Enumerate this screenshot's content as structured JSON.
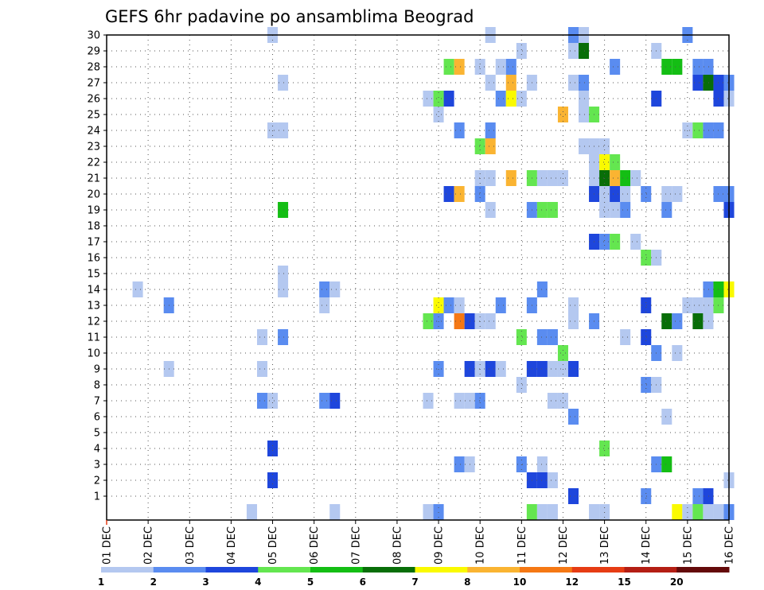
{
  "chart_data": {
    "type": "heatmap",
    "title": "GEFS 6hr padavine po ansamblima Beograd",
    "x_tick_labels": [
      "01 DEC",
      "02 DEC",
      "03 DEC",
      "04 DEC",
      "05 DEC",
      "06 DEC",
      "07 DEC",
      "08 DEC",
      "09 DEC",
      "10 DEC",
      "11 DEC",
      "12 DEC",
      "13 DEC",
      "14 DEC",
      "15 DEC",
      "16 DEC"
    ],
    "y_tick_labels": [
      "1",
      "2",
      "3",
      "4",
      "5",
      "6",
      "7",
      "8",
      "9",
      "10",
      "11",
      "12",
      "13",
      "14",
      "15",
      "16",
      "17",
      "18",
      "19",
      "20",
      "21",
      "22",
      "23",
      "24",
      "25",
      "26",
      "27",
      "28",
      "29",
      "30"
    ],
    "xlim_days": [
      1,
      16
    ],
    "ylim_members": [
      0,
      30
    ],
    "grid": true,
    "legend_placement": "bottom",
    "legend": {
      "labels": [
        "1",
        "2",
        "3",
        "4",
        "5",
        "6",
        "7",
        "8",
        "10",
        "12",
        "15",
        "20"
      ],
      "colors": [
        "#b4c8f0",
        "#5a8cf0",
        "#1e46dc",
        "#64e650",
        "#14be14",
        "#086e08",
        "#fafa00",
        "#fab432",
        "#f57814",
        "#e63c14",
        "#b41e14",
        "#640a0a"
      ]
    },
    "cells": [
      {
        "day": 5.0,
        "member": 30,
        "level": 1
      },
      {
        "day": 10.25,
        "member": 30,
        "level": 1
      },
      {
        "day": 12.25,
        "member": 30,
        "level": 2
      },
      {
        "day": 12.5,
        "member": 30,
        "level": 1
      },
      {
        "day": 15.0,
        "member": 30,
        "level": 2
      },
      {
        "day": 11.0,
        "member": 29,
        "level": 1
      },
      {
        "day": 12.25,
        "member": 29,
        "level": 1
      },
      {
        "day": 12.5,
        "member": 29,
        "level": 6
      },
      {
        "day": 14.25,
        "member": 29,
        "level": 1
      },
      {
        "day": 9.25,
        "member": 28,
        "level": 4
      },
      {
        "day": 9.5,
        "member": 28,
        "level": 8
      },
      {
        "day": 10.0,
        "member": 28,
        "level": 1
      },
      {
        "day": 10.5,
        "member": 28,
        "level": 1
      },
      {
        "day": 10.75,
        "member": 28,
        "level": 2
      },
      {
        "day": 13.25,
        "member": 28,
        "level": 2
      },
      {
        "day": 14.5,
        "member": 28,
        "level": 5
      },
      {
        "day": 14.75,
        "member": 28,
        "level": 5
      },
      {
        "day": 15.25,
        "member": 28,
        "level": 2
      },
      {
        "day": 15.5,
        "member": 28,
        "level": 2
      },
      {
        "day": 5.25,
        "member": 27,
        "level": 1
      },
      {
        "day": 10.25,
        "member": 27,
        "level": 1
      },
      {
        "day": 10.75,
        "member": 27,
        "level": 8
      },
      {
        "day": 11.25,
        "member": 27,
        "level": 1
      },
      {
        "day": 12.25,
        "member": 27,
        "level": 1
      },
      {
        "day": 12.5,
        "member": 27,
        "level": 2
      },
      {
        "day": 15.25,
        "member": 27,
        "level": 3
      },
      {
        "day": 15.5,
        "member": 27,
        "level": 6
      },
      {
        "day": 15.75,
        "member": 27,
        "level": 3
      },
      {
        "day": 16.0,
        "member": 27,
        "level": 2
      },
      {
        "day": 8.75,
        "member": 26,
        "level": 1
      },
      {
        "day": 9.0,
        "member": 26,
        "level": 4
      },
      {
        "day": 9.25,
        "member": 26,
        "level": 3
      },
      {
        "day": 10.5,
        "member": 26,
        "level": 2
      },
      {
        "day": 10.75,
        "member": 26,
        "level": 7
      },
      {
        "day": 11.0,
        "member": 26,
        "level": 1
      },
      {
        "day": 12.5,
        "member": 26,
        "level": 1
      },
      {
        "day": 14.25,
        "member": 26,
        "level": 3
      },
      {
        "day": 15.75,
        "member": 26,
        "level": 3
      },
      {
        "day": 16.0,
        "member": 26,
        "level": 1
      },
      {
        "day": 9.0,
        "member": 25,
        "level": 1
      },
      {
        "day": 12.0,
        "member": 25,
        "level": 8
      },
      {
        "day": 12.5,
        "member": 25,
        "level": 1
      },
      {
        "day": 12.75,
        "member": 25,
        "level": 4
      },
      {
        "day": 5.0,
        "member": 24,
        "level": 1
      },
      {
        "day": 5.25,
        "member": 24,
        "level": 1
      },
      {
        "day": 9.5,
        "member": 24,
        "level": 2
      },
      {
        "day": 10.25,
        "member": 24,
        "level": 2
      },
      {
        "day": 15.0,
        "member": 24,
        "level": 1
      },
      {
        "day": 15.25,
        "member": 24,
        "level": 4
      },
      {
        "day": 15.5,
        "member": 24,
        "level": 2
      },
      {
        "day": 15.75,
        "member": 24,
        "level": 2
      },
      {
        "day": 10.0,
        "member": 23,
        "level": 4
      },
      {
        "day": 10.25,
        "member": 23,
        "level": 8
      },
      {
        "day": 12.5,
        "member": 23,
        "level": 1
      },
      {
        "day": 12.75,
        "member": 23,
        "level": 1
      },
      {
        "day": 13.0,
        "member": 23,
        "level": 1
      },
      {
        "day": 12.75,
        "member": 22,
        "level": 1
      },
      {
        "day": 13.0,
        "member": 22,
        "level": 7
      },
      {
        "day": 13.25,
        "member": 22,
        "level": 4
      },
      {
        "day": 10.0,
        "member": 21,
        "level": 1
      },
      {
        "day": 10.25,
        "member": 21,
        "level": 1
      },
      {
        "day": 10.75,
        "member": 21,
        "level": 8
      },
      {
        "day": 11.25,
        "member": 21,
        "level": 4
      },
      {
        "day": 11.5,
        "member": 21,
        "level": 1
      },
      {
        "day": 11.75,
        "member": 21,
        "level": 1
      },
      {
        "day": 12.0,
        "member": 21,
        "level": 1
      },
      {
        "day": 12.75,
        "member": 21,
        "level": 1
      },
      {
        "day": 13.0,
        "member": 21,
        "level": 6
      },
      {
        "day": 13.25,
        "member": 21,
        "level": 8
      },
      {
        "day": 13.5,
        "member": 21,
        "level": 5
      },
      {
        "day": 13.75,
        "member": 21,
        "level": 1
      },
      {
        "day": 9.25,
        "member": 20,
        "level": 3
      },
      {
        "day": 9.5,
        "member": 20,
        "level": 8
      },
      {
        "day": 10.0,
        "member": 20,
        "level": 2
      },
      {
        "day": 12.75,
        "member": 20,
        "level": 3
      },
      {
        "day": 13.0,
        "member": 20,
        "level": 1
      },
      {
        "day": 13.25,
        "member": 20,
        "level": 3
      },
      {
        "day": 13.5,
        "member": 20,
        "level": 1
      },
      {
        "day": 14.0,
        "member": 20,
        "level": 2
      },
      {
        "day": 14.5,
        "member": 20,
        "level": 1
      },
      {
        "day": 14.75,
        "member": 20,
        "level": 1
      },
      {
        "day": 15.75,
        "member": 20,
        "level": 2
      },
      {
        "day": 16.0,
        "member": 20,
        "level": 2
      },
      {
        "day": 5.25,
        "member": 19,
        "level": 5
      },
      {
        "day": 10.25,
        "member": 19,
        "level": 1
      },
      {
        "day": 11.25,
        "member": 19,
        "level": 2
      },
      {
        "day": 11.5,
        "member": 19,
        "level": 4
      },
      {
        "day": 11.75,
        "member": 19,
        "level": 4
      },
      {
        "day": 13.0,
        "member": 19,
        "level": 1
      },
      {
        "day": 13.25,
        "member": 19,
        "level": 1
      },
      {
        "day": 13.5,
        "member": 19,
        "level": 2
      },
      {
        "day": 14.5,
        "member": 19,
        "level": 2
      },
      {
        "day": 16.0,
        "member": 19,
        "level": 3
      },
      {
        "day": 12.75,
        "member": 17,
        "level": 3
      },
      {
        "day": 13.0,
        "member": 17,
        "level": 2
      },
      {
        "day": 13.25,
        "member": 17,
        "level": 4
      },
      {
        "day": 13.75,
        "member": 17,
        "level": 1
      },
      {
        "day": 14.0,
        "member": 16,
        "level": 4
      },
      {
        "day": 14.25,
        "member": 16,
        "level": 1
      },
      {
        "day": 1.75,
        "member": 14,
        "level": 1
      },
      {
        "day": 5.25,
        "member": 15,
        "level": 1
      },
      {
        "day": 5.25,
        "member": 14,
        "level": 1
      },
      {
        "day": 6.25,
        "member": 14,
        "level": 2
      },
      {
        "day": 6.5,
        "member": 14,
        "level": 1
      },
      {
        "day": 11.5,
        "member": 14,
        "level": 2
      },
      {
        "day": 15.5,
        "member": 14,
        "level": 2
      },
      {
        "day": 15.75,
        "member": 14,
        "level": 5
      },
      {
        "day": 16.0,
        "member": 14,
        "level": 7
      },
      {
        "day": 2.5,
        "member": 13,
        "level": 2
      },
      {
        "day": 6.25,
        "member": 13,
        "level": 1
      },
      {
        "day": 9.0,
        "member": 13,
        "level": 7
      },
      {
        "day": 9.25,
        "member": 13,
        "level": 2
      },
      {
        "day": 9.5,
        "member": 13,
        "level": 1
      },
      {
        "day": 10.5,
        "member": 13,
        "level": 2
      },
      {
        "day": 11.25,
        "member": 13,
        "level": 2
      },
      {
        "day": 12.25,
        "member": 13,
        "level": 1
      },
      {
        "day": 14.0,
        "member": 13,
        "level": 3
      },
      {
        "day": 15.0,
        "member": 13,
        "level": 1
      },
      {
        "day": 15.25,
        "member": 13,
        "level": 1
      },
      {
        "day": 15.5,
        "member": 13,
        "level": 1
      },
      {
        "day": 15.75,
        "member": 13,
        "level": 4
      },
      {
        "day": 8.75,
        "member": 12,
        "level": 4
      },
      {
        "day": 9.0,
        "member": 12,
        "level": 2
      },
      {
        "day": 9.5,
        "member": 12,
        "level": 9
      },
      {
        "day": 9.75,
        "member": 12,
        "level": 3
      },
      {
        "day": 10.0,
        "member": 12,
        "level": 1
      },
      {
        "day": 10.25,
        "member": 12,
        "level": 1
      },
      {
        "day": 12.25,
        "member": 12,
        "level": 1
      },
      {
        "day": 12.75,
        "member": 12,
        "level": 2
      },
      {
        "day": 14.5,
        "member": 12,
        "level": 6
      },
      {
        "day": 14.75,
        "member": 12,
        "level": 2
      },
      {
        "day": 15.25,
        "member": 12,
        "level": 6
      },
      {
        "day": 15.5,
        "member": 12,
        "level": 1
      },
      {
        "day": 4.75,
        "member": 11,
        "level": 1
      },
      {
        "day": 5.25,
        "member": 11,
        "level": 2
      },
      {
        "day": 11.0,
        "member": 11,
        "level": 4
      },
      {
        "day": 11.5,
        "member": 11,
        "level": 2
      },
      {
        "day": 11.75,
        "member": 11,
        "level": 2
      },
      {
        "day": 13.5,
        "member": 11,
        "level": 1
      },
      {
        "day": 14.0,
        "member": 11,
        "level": 3
      },
      {
        "day": 12.0,
        "member": 10,
        "level": 4
      },
      {
        "day": 14.25,
        "member": 10,
        "level": 2
      },
      {
        "day": 14.75,
        "member": 10,
        "level": 1
      },
      {
        "day": 2.5,
        "member": 9,
        "level": 1
      },
      {
        "day": 4.75,
        "member": 9,
        "level": 1
      },
      {
        "day": 9.0,
        "member": 9,
        "level": 2
      },
      {
        "day": 9.75,
        "member": 9,
        "level": 3
      },
      {
        "day": 10.0,
        "member": 9,
        "level": 1
      },
      {
        "day": 10.25,
        "member": 9,
        "level": 3
      },
      {
        "day": 10.5,
        "member": 9,
        "level": 1
      },
      {
        "day": 11.25,
        "member": 9,
        "level": 3
      },
      {
        "day": 11.5,
        "member": 9,
        "level": 3
      },
      {
        "day": 11.75,
        "member": 9,
        "level": 1
      },
      {
        "day": 12.0,
        "member": 9,
        "level": 1
      },
      {
        "day": 12.25,
        "member": 9,
        "level": 3
      },
      {
        "day": 11.0,
        "member": 8,
        "level": 1
      },
      {
        "day": 14.0,
        "member": 8,
        "level": 2
      },
      {
        "day": 14.25,
        "member": 8,
        "level": 1
      },
      {
        "day": 4.75,
        "member": 7,
        "level": 2
      },
      {
        "day": 5.0,
        "member": 7,
        "level": 1
      },
      {
        "day": 6.25,
        "member": 7,
        "level": 2
      },
      {
        "day": 6.5,
        "member": 7,
        "level": 3
      },
      {
        "day": 8.75,
        "member": 7,
        "level": 1
      },
      {
        "day": 9.5,
        "member": 7,
        "level": 1
      },
      {
        "day": 9.75,
        "member": 7,
        "level": 1
      },
      {
        "day": 10.0,
        "member": 7,
        "level": 2
      },
      {
        "day": 11.75,
        "member": 7,
        "level": 1
      },
      {
        "day": 12.0,
        "member": 7,
        "level": 1
      },
      {
        "day": 12.25,
        "member": 6,
        "level": 2
      },
      {
        "day": 14.5,
        "member": 6,
        "level": 1
      },
      {
        "day": 5.0,
        "member": 4,
        "level": 3
      },
      {
        "day": 13.0,
        "member": 4,
        "level": 4
      },
      {
        "day": 9.5,
        "member": 3,
        "level": 2
      },
      {
        "day": 9.75,
        "member": 3,
        "level": 1
      },
      {
        "day": 11.0,
        "member": 3,
        "level": 2
      },
      {
        "day": 11.5,
        "member": 3,
        "level": 1
      },
      {
        "day": 14.25,
        "member": 3,
        "level": 2
      },
      {
        "day": 14.5,
        "member": 3,
        "level": 5
      },
      {
        "day": 5.0,
        "member": 2,
        "level": 3
      },
      {
        "day": 11.25,
        "member": 2,
        "level": 3
      },
      {
        "day": 11.5,
        "member": 2,
        "level": 3
      },
      {
        "day": 11.75,
        "member": 2,
        "level": 1
      },
      {
        "day": 16.0,
        "member": 2,
        "level": 1
      },
      {
        "day": 12.25,
        "member": 1,
        "level": 3
      },
      {
        "day": 14.0,
        "member": 1,
        "level": 2
      },
      {
        "day": 15.25,
        "member": 1,
        "level": 2
      },
      {
        "day": 15.5,
        "member": 1,
        "level": 3
      },
      {
        "day": 4.5,
        "member": 0,
        "level": 1
      },
      {
        "day": 6.5,
        "member": 0,
        "level": 1
      },
      {
        "day": 8.75,
        "member": 0,
        "level": 1
      },
      {
        "day": 9.0,
        "member": 0,
        "level": 2
      },
      {
        "day": 11.25,
        "member": 0,
        "level": 4
      },
      {
        "day": 11.5,
        "member": 0,
        "level": 1
      },
      {
        "day": 11.75,
        "member": 0,
        "level": 1
      },
      {
        "day": 12.75,
        "member": 0,
        "level": 1
      },
      {
        "day": 13.0,
        "member": 0,
        "level": 1
      },
      {
        "day": 14.75,
        "member": 0,
        "level": 7
      },
      {
        "day": 15.0,
        "member": 0,
        "level": 1
      },
      {
        "day": 15.25,
        "member": 0,
        "level": 4
      },
      {
        "day": 15.5,
        "member": 0,
        "level": 1
      },
      {
        "day": 15.75,
        "member": 0,
        "level": 1
      },
      {
        "day": 16.0,
        "member": 0,
        "level": 2
      }
    ]
  }
}
